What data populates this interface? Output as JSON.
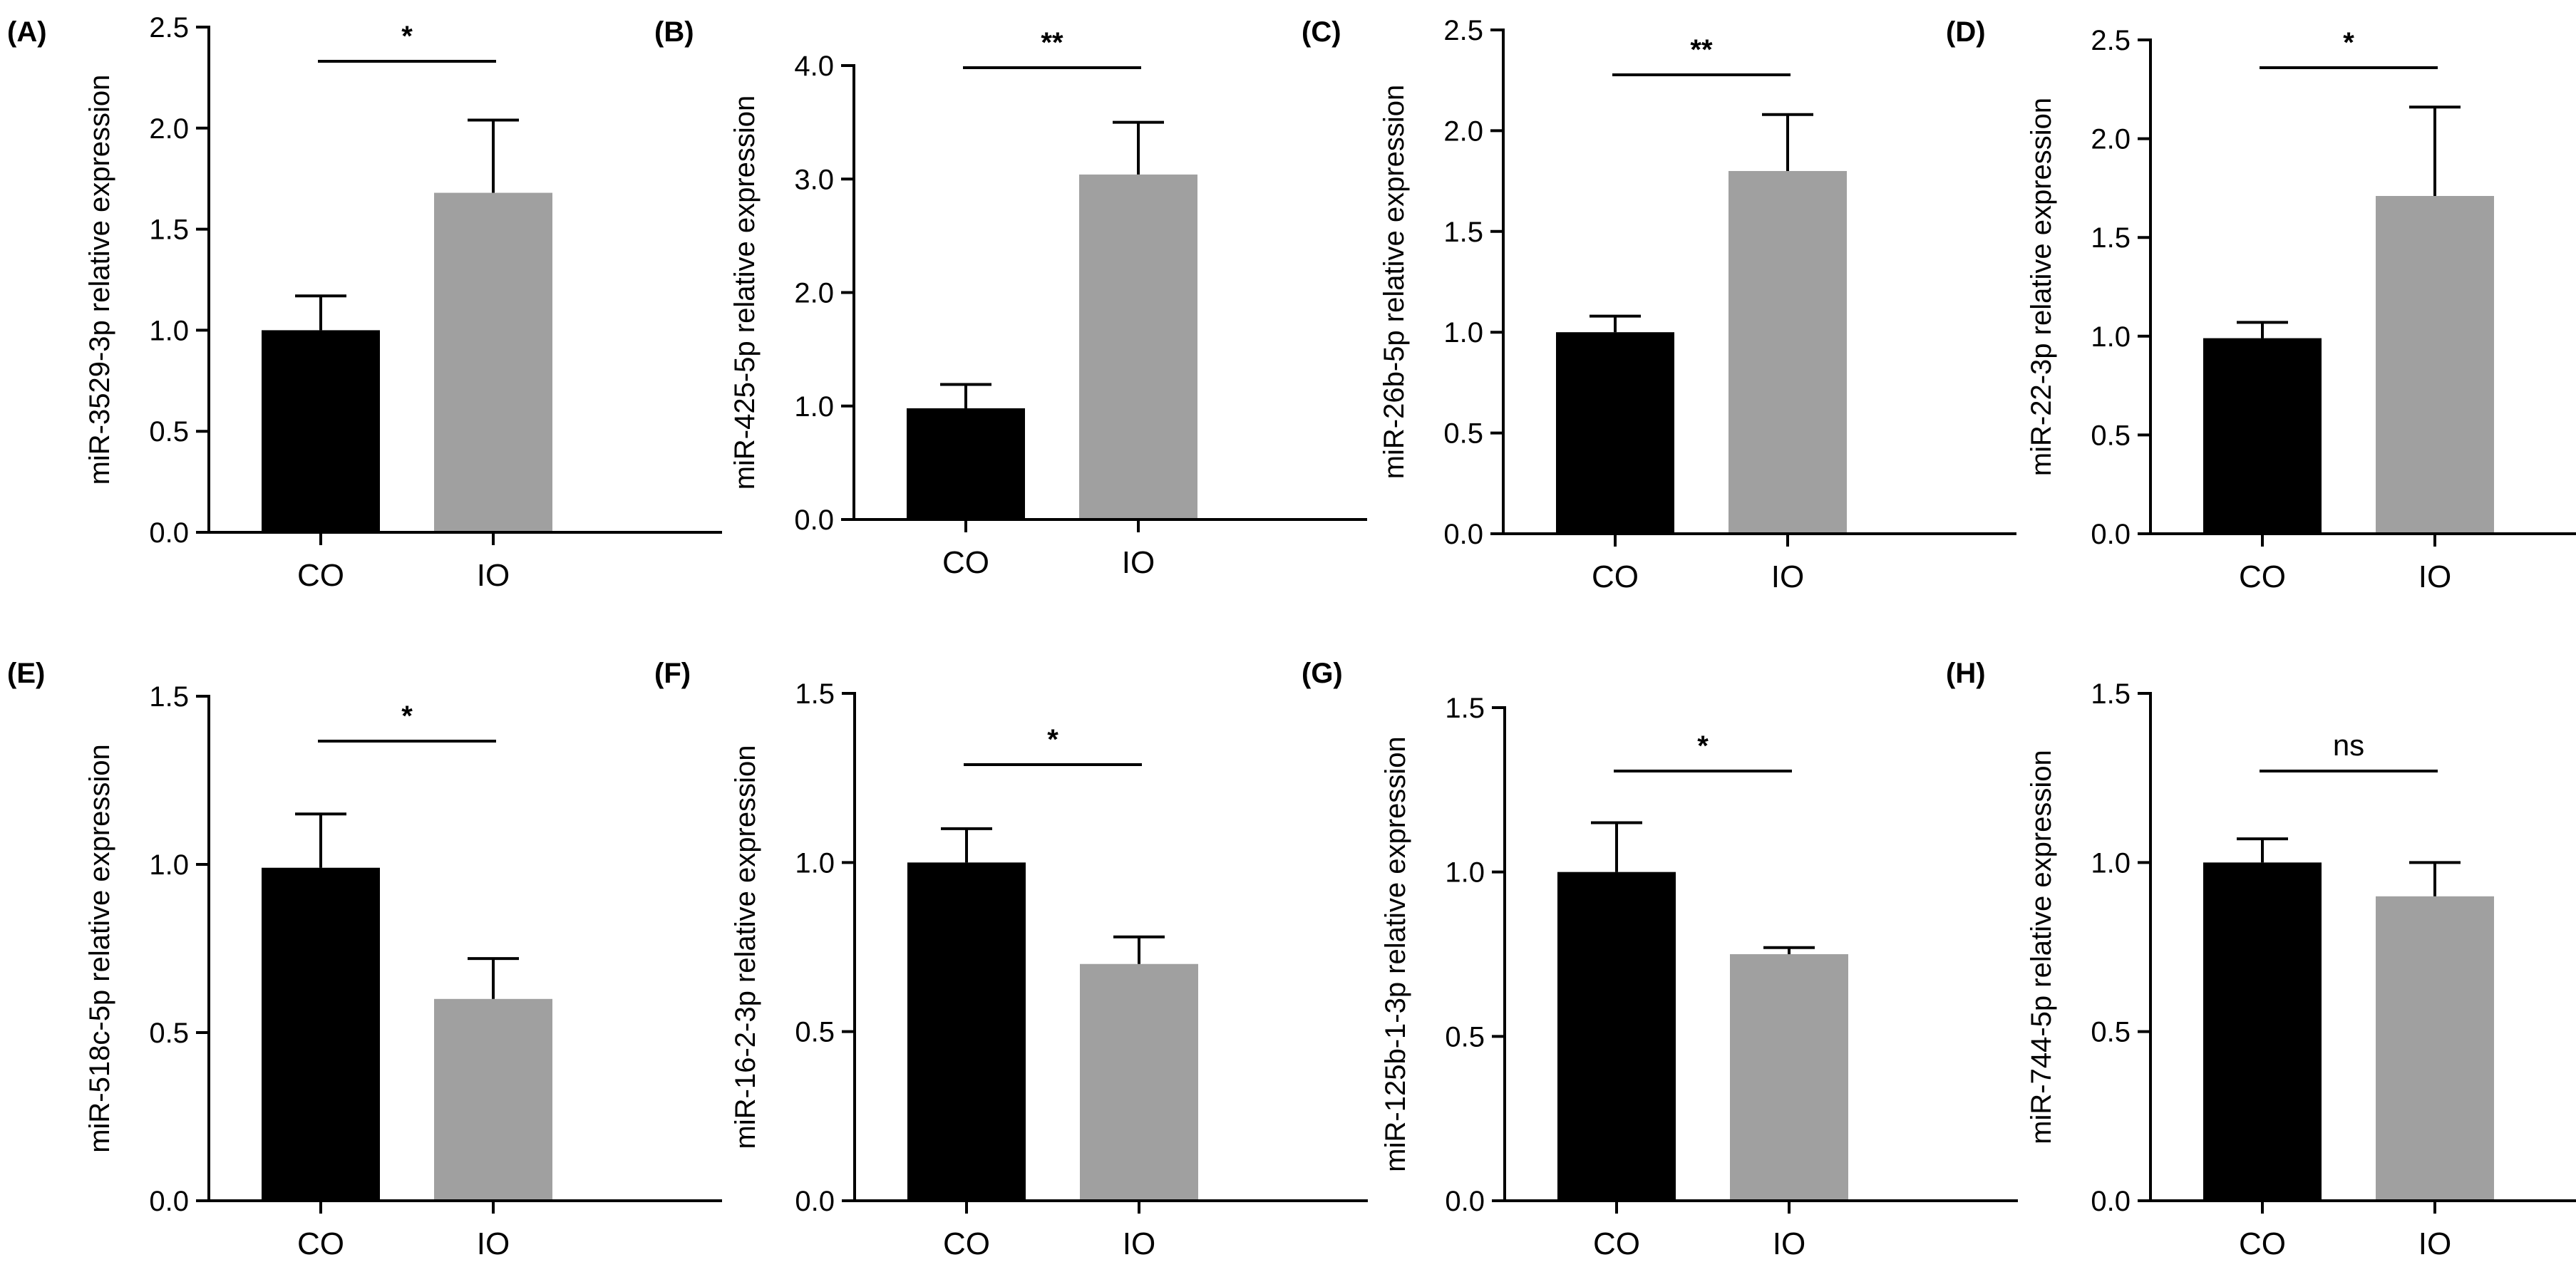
{
  "figure": {
    "group_colors": {
      "CO": "#000000",
      "IO": "#a0a0a0"
    }
  },
  "chart_data": [
    {
      "panel": "(A)",
      "type": "bar",
      "categories": [
        "CO",
        "IO"
      ],
      "values": [
        1.0,
        1.68
      ],
      "errors": [
        0.17,
        0.36
      ],
      "ylabel": "miR-3529-3p relative expression",
      "ylim": [
        0,
        2.5
      ],
      "yticks": [
        "0.0",
        "0.5",
        "1.0",
        "1.5",
        "2.0",
        "2.5"
      ],
      "significance": "*"
    },
    {
      "panel": "(B)",
      "type": "bar",
      "categories": [
        "CO",
        "IO"
      ],
      "values": [
        0.98,
        3.04
      ],
      "errors": [
        0.21,
        0.46
      ],
      "ylabel": "miR-425-5p relative expression",
      "ylim": [
        0,
        4.0
      ],
      "yticks": [
        "0.0",
        "1.0",
        "2.0",
        "3.0",
        "4.0"
      ],
      "significance": "**"
    },
    {
      "panel": "(C)",
      "type": "bar",
      "categories": [
        "CO",
        "IO"
      ],
      "values": [
        1.0,
        1.8
      ],
      "errors": [
        0.08,
        0.28
      ],
      "ylabel": "miR-26b-5p relative expression",
      "ylim": [
        0,
        2.5
      ],
      "yticks": [
        "0.0",
        "0.5",
        "1.0",
        "1.5",
        "2.0",
        "2.5"
      ],
      "significance": "**"
    },
    {
      "panel": "(D)",
      "type": "bar",
      "categories": [
        "CO",
        "IO"
      ],
      "values": [
        0.99,
        1.71
      ],
      "errors": [
        0.08,
        0.45
      ],
      "ylabel": "miR-22-3p relative expression",
      "ylim": [
        0,
        2.5
      ],
      "yticks": [
        "0.0",
        "0.5",
        "1.0",
        "1.5",
        "2.0",
        "2.5"
      ],
      "significance": "*"
    },
    {
      "panel": "(E)",
      "type": "bar",
      "categories": [
        "CO",
        "IO"
      ],
      "values": [
        0.99,
        0.6
      ],
      "errors": [
        0.16,
        0.12
      ],
      "ylabel": "miR-518c-5p relative expression",
      "ylim": [
        0,
        1.5
      ],
      "yticks": [
        "0.0",
        "0.5",
        "1.0",
        "1.5"
      ],
      "significance": "*"
    },
    {
      "panel": "(F)",
      "type": "bar",
      "categories": [
        "CO",
        "IO"
      ],
      "values": [
        1.0,
        0.7
      ],
      "errors": [
        0.1,
        0.08
      ],
      "ylabel": "miR-16-2-3p relative expression",
      "ylim": [
        0,
        1.5
      ],
      "yticks": [
        "0.0",
        "0.5",
        "1.0",
        "1.5"
      ],
      "significance": "*"
    },
    {
      "panel": "(G)",
      "type": "bar",
      "categories": [
        "CO",
        "IO"
      ],
      "values": [
        1.0,
        0.75
      ],
      "errors": [
        0.15,
        0.02
      ],
      "ylabel": "miR-125b-1-3p relative expression",
      "ylim": [
        0,
        1.5
      ],
      "yticks": [
        "0.0",
        "0.5",
        "1.0",
        "1.5"
      ],
      "significance": "*"
    },
    {
      "panel": "(H)",
      "type": "bar",
      "categories": [
        "CO",
        "IO"
      ],
      "values": [
        1.0,
        0.9
      ],
      "errors": [
        0.07,
        0.1
      ],
      "ylabel": "miR-744-5p relative expression",
      "ylim": [
        0,
        1.5
      ],
      "yticks": [
        "0.0",
        "0.5",
        "1.0",
        "1.5"
      ],
      "significance": "ns"
    }
  ]
}
